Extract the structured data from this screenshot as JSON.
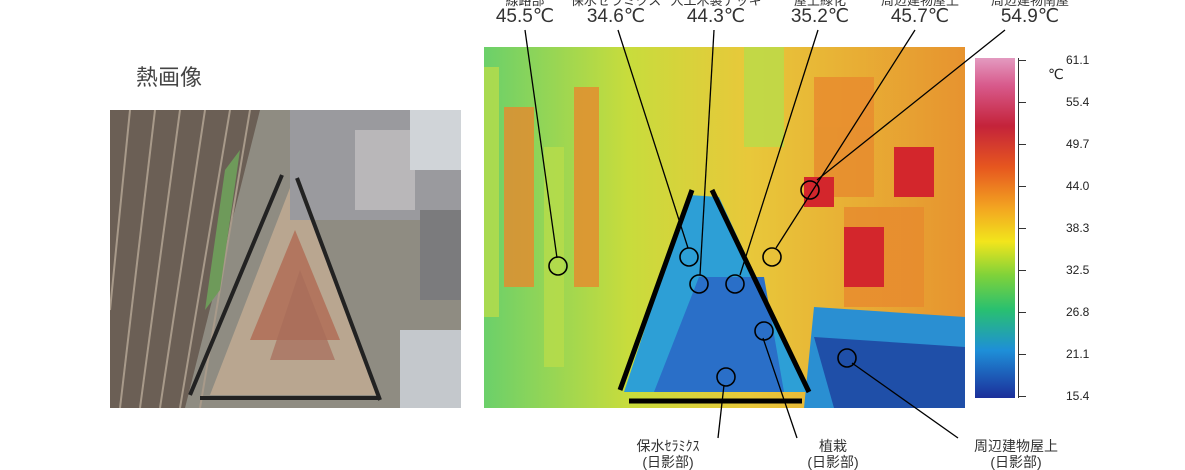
{
  "panel_title": "熱画像",
  "top_labels": [
    {
      "name": "線路部",
      "value": "45.5℃"
    },
    {
      "name": "保水セラミクス",
      "value": "34.6℃"
    },
    {
      "name": "人工木製デッキ",
      "value": "44.3℃"
    },
    {
      "name": "屋上緑化",
      "value": "35.2℃"
    },
    {
      "name": "周辺建物屋上",
      "value": "45.7℃"
    },
    {
      "name": "周辺建物南屋",
      "value": "54.9℃"
    }
  ],
  "bottom_labels": [
    {
      "line1": "保水ｾﾗﾐｸｽ",
      "line2": "(日影部)"
    },
    {
      "line1": "植栽",
      "line2": "(日影部)"
    },
    {
      "line1": "周辺建物屋上",
      "line2": "(日影部)"
    }
  ],
  "scale": {
    "unit": "℃",
    "ticks": [
      "61.1",
      "55.4",
      "49.7",
      "44.0",
      "38.3",
      "32.5",
      "26.8",
      "21.1",
      "15.4"
    ]
  }
}
